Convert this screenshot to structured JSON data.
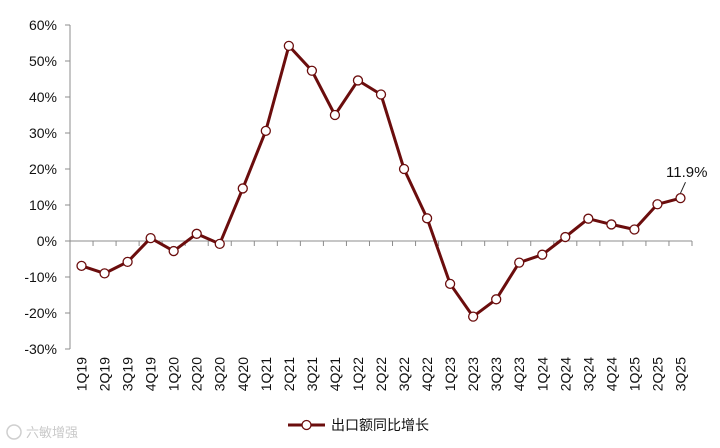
{
  "chart_data": {
    "type": "line",
    "title": "",
    "xlabel": "",
    "ylabel": "",
    "categories": [
      "1Q19",
      "2Q19",
      "3Q19",
      "4Q19",
      "1Q20",
      "2Q20",
      "3Q20",
      "4Q20",
      "1Q21",
      "2Q21",
      "3Q21",
      "4Q21",
      "1Q22",
      "2Q22",
      "3Q22",
      "4Q22",
      "1Q23",
      "2Q23",
      "3Q23",
      "4Q23",
      "1Q24",
      "2Q24",
      "3Q24",
      "4Q24",
      "1Q25",
      "2Q25",
      "3Q25"
    ],
    "series": [
      {
        "name": "出口额同比增长",
        "values": [
          -6.9,
          -9.0,
          -5.8,
          0.8,
          -2.8,
          2.0,
          -0.8,
          14.6,
          30.6,
          54.2,
          47.3,
          35.0,
          44.6,
          40.7,
          20.0,
          6.3,
          -11.9,
          -21.0,
          -16.2,
          -6.0,
          -3.8,
          1.1,
          6.2,
          4.6,
          3.2,
          10.2,
          11.9
        ]
      }
    ],
    "ylim": [
      -30,
      60
    ],
    "yticks": [
      -30,
      -20,
      -10,
      0,
      10,
      20,
      30,
      40,
      50,
      60
    ],
    "ytick_labels": [
      "-30%",
      "-20%",
      "-10%",
      "0%",
      "10%",
      "20%",
      "30%",
      "40%",
      "50%",
      "60%"
    ],
    "grid": false,
    "legend": "bottom-center",
    "annotation": {
      "text": "11.9%",
      "category": "3Q25"
    },
    "colors": {
      "line": "#6b0d0d",
      "marker_fill": "#ffffff",
      "axis": "#8c8c8c"
    }
  },
  "watermark": "六敏增强"
}
